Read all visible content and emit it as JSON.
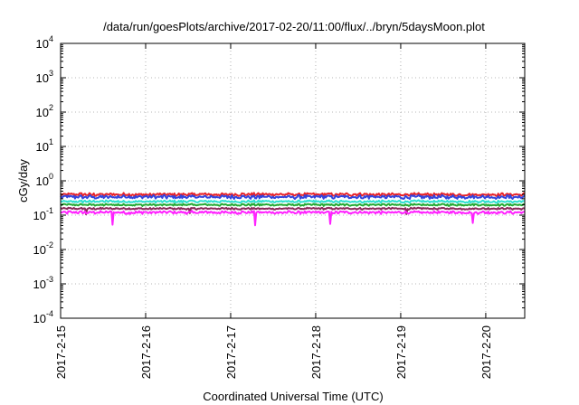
{
  "chart_data": {
    "type": "line",
    "title": "/data/run/goesPlots/archive/2017-02-20/11:00/flux/../bryn/5daysMoon.plot",
    "xlabel": "Coordinated Universal Time (UTC)",
    "ylabel": "cGy/day",
    "y_scale": "log",
    "ylim": [
      0.0001,
      10000
    ],
    "xlim": [
      "2017-02-15 00:00",
      "2017-02-20 11:00"
    ],
    "grid": true,
    "x_ticks": [
      "2017-2-15",
      "2017-2-16",
      "2017-2-17",
      "2017-2-18",
      "2017-2-19",
      "2017-2-20"
    ],
    "y_ticks": [
      {
        "base": "10",
        "exp": "4"
      },
      {
        "base": "10",
        "exp": "3"
      },
      {
        "base": "10",
        "exp": "2"
      },
      {
        "base": "10",
        "exp": "1"
      },
      {
        "base": "10",
        "exp": "0"
      },
      {
        "base": "10",
        "exp": "-1"
      },
      {
        "base": "10",
        "exp": "-2"
      },
      {
        "base": "10",
        "exp": "-3"
      },
      {
        "base": "10",
        "exp": "-4"
      }
    ],
    "series": [
      {
        "color": "#e8232a",
        "level": 0.4,
        "noise": 0.1
      },
      {
        "color": "#3344dd",
        "level": 0.34,
        "noise": 0.12
      },
      {
        "color": "#2ee0d0",
        "level": 0.25,
        "noise": 0.08
      },
      {
        "color": "#22aa33",
        "level": 0.2,
        "noise": 0.07
      },
      {
        "color": "#8a2a5a",
        "level": 0.155,
        "noise": 0.06
      },
      {
        "color": "#ff22ff",
        "level": 0.12,
        "noise": 0.1
      }
    ],
    "colors": {
      "frame": "#000000",
      "grid": "#a0a0a0"
    }
  }
}
